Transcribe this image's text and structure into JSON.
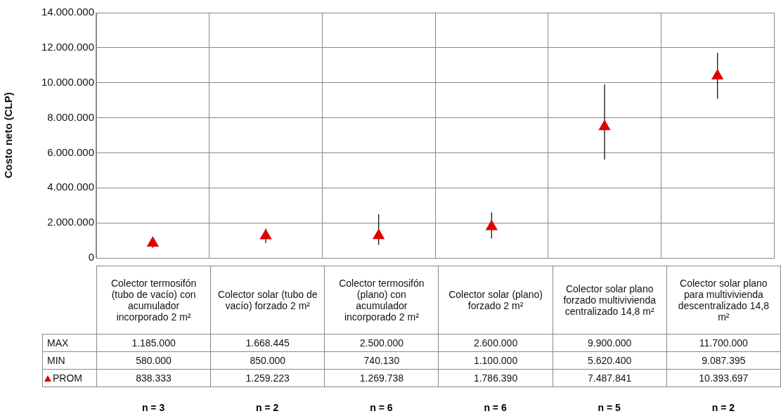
{
  "chart_data": {
    "type": "scatter",
    "ylabel": "Costo neto (CLP)",
    "categories": [
      "Colector termosifón (tubo de vacío) con acumulador incorporado 2 m²",
      "Colector solar (tubo de vacío) forzado 2 m²",
      "Colector termosifón (plano) con acumulador incorporado 2 m²",
      "Colector solar (plano) forzado 2 m²",
      "Colector solar plano forzado multivivienda centralizado 14,8 m²",
      "Colector solar plano para multivivienda descentralizado 14,8 m²"
    ],
    "series": [
      {
        "name": "PROM",
        "color": "#e00000",
        "values": [
          838333,
          1259223,
          1269738,
          1786390,
          7487841,
          10393697
        ],
        "value_labels": [
          "838.333",
          "1.259.223",
          "1.269.738",
          "1.786.390",
          "7.487.841",
          "10.393.697"
        ],
        "errors": [
          [
            580000,
            1185000
          ],
          [
            850000,
            1668445
          ],
          [
            740130,
            2500000
          ],
          [
            1100000,
            2600000
          ],
          [
            5620400,
            9900000
          ],
          [
            9087395,
            11700000
          ]
        ]
      }
    ],
    "ylim": [
      0,
      14000000
    ],
    "yticks": [
      {
        "value": 0,
        "label": "0"
      },
      {
        "value": 2000000,
        "label": "2.000.000"
      },
      {
        "value": 4000000,
        "label": "4.000.000"
      },
      {
        "value": 6000000,
        "label": "6.000.000"
      },
      {
        "value": 8000000,
        "label": "8.000.000"
      },
      {
        "value": 10000000,
        "label": "10.000.000"
      },
      {
        "value": 12000000,
        "label": "12.000.000"
      },
      {
        "value": 14000000,
        "label": "14.000.000"
      }
    ],
    "grid": true,
    "marker": "triangle",
    "legend": "bottom",
    "annotations": [
      "MAX",
      "MIN",
      "1.185.000",
      "1.668.445",
      "2.500.000",
      "2.600.000",
      "9.900.000",
      "11.700.000",
      "580.000",
      "850.000",
      "740.130",
      "1.100.000",
      "5.620.400",
      "9.087.395",
      "n = 3",
      "n = 2",
      "n = 6",
      "n = 6",
      "n = 5",
      "n = 2"
    ]
  }
}
